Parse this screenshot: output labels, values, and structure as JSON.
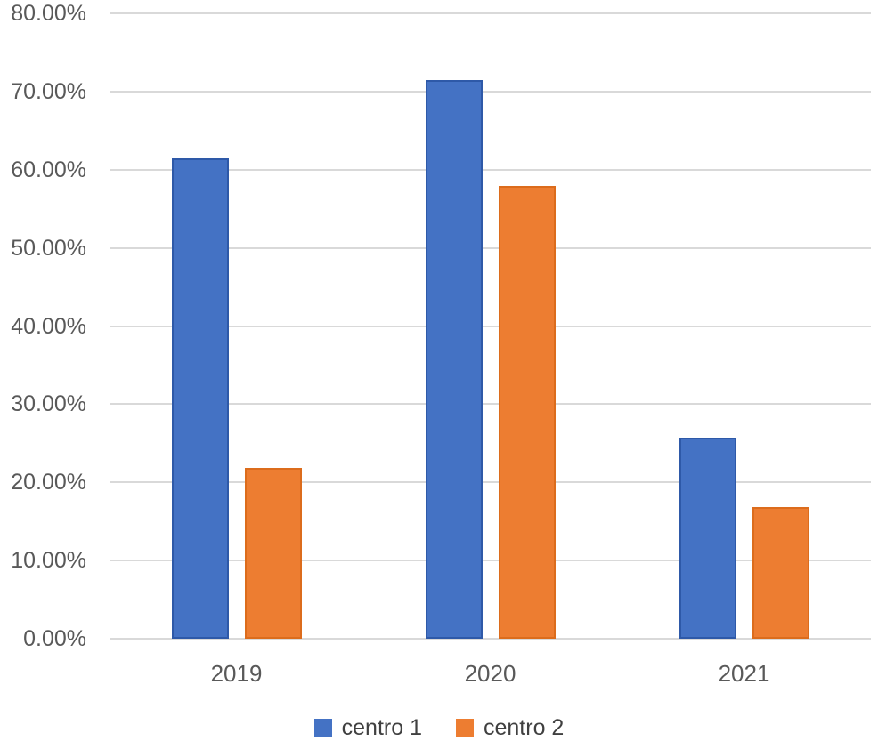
{
  "chart_data": {
    "type": "bar",
    "title": "",
    "xlabel": "",
    "ylabel": "",
    "categories": [
      "2019",
      "2020",
      "2021"
    ],
    "series": [
      {
        "name": "centro 1",
        "color": "#4472C4",
        "edge_color": "#2E59A8",
        "values": [
          61.4,
          71.5,
          25.7
        ]
      },
      {
        "name": "centro 2",
        "color": "#ED7D31",
        "edge_color": "#DC6C1C",
        "values": [
          21.8,
          57.9,
          16.9
        ]
      }
    ],
    "values_unit": "%",
    "ylim": [
      0,
      80
    ],
    "ytick_step": 10,
    "ytick_labels": [
      "0.00%",
      "10.00%",
      "20.00%",
      "30.00%",
      "40.00%",
      "50.00%",
      "60.00%",
      "70.00%",
      "80.00%"
    ],
    "xtick_labels": [
      "2019",
      "2020",
      "2021"
    ],
    "grid": true,
    "legend_position": "bottom",
    "legend_items": [
      "centro 1",
      "centro 2"
    ],
    "colors": {
      "gridline": "#D9D9D9",
      "axis_text": "#595959",
      "legend_text": "#404040",
      "background": "#FFFFFF"
    }
  }
}
